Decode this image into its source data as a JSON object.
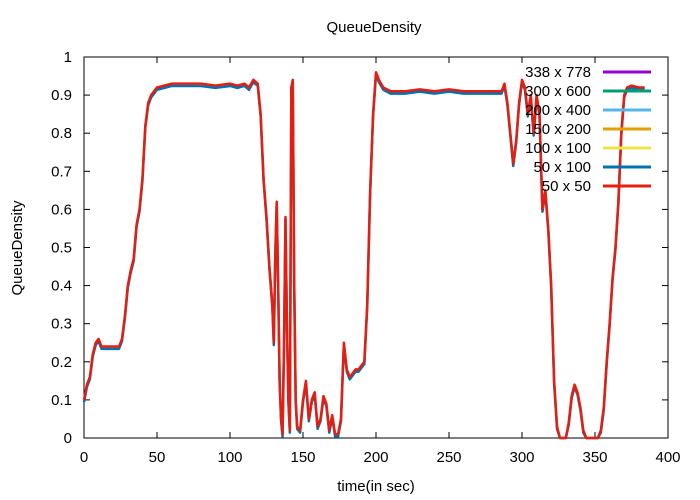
{
  "chart_data": {
    "type": "line",
    "title": "QueueDensity",
    "xlabel": "time(in sec)",
    "ylabel": "QueueDensity",
    "xlim": [
      0,
      400
    ],
    "ylim": [
      0,
      1
    ],
    "xticks": [
      "0",
      "50",
      "100",
      "150",
      "200",
      "250",
      "300",
      "350",
      "400"
    ],
    "yticks": [
      "0",
      "0.1",
      "0.2",
      "0.3",
      "0.4",
      "0.5",
      "0.6",
      "0.7",
      "0.8",
      "0.9",
      "1"
    ],
    "grid": false,
    "legend_position": "top-right",
    "series": [
      {
        "name": "338 x 778",
        "color": "#9400d3",
        "visible": false
      },
      {
        "name": "300 x 600",
        "color": "#009e73",
        "visible": false
      },
      {
        "name": "200 x 400",
        "color": "#56b4e9",
        "visible": false
      },
      {
        "name": "150 x 200",
        "color": "#e69f00",
        "visible": false
      },
      {
        "name": "100 x 100",
        "color": "#f0e442",
        "visible": false
      },
      {
        "name": "50 x 100",
        "color": "#0072b2",
        "visible": true
      },
      {
        "name": "50 x 50",
        "color": "#e51e10",
        "visible": true,
        "points": [
          [
            0,
            0.1
          ],
          [
            2,
            0.14
          ],
          [
            4,
            0.16
          ],
          [
            6,
            0.22
          ],
          [
            8,
            0.25
          ],
          [
            10,
            0.26
          ],
          [
            12,
            0.24
          ],
          [
            16,
            0.24
          ],
          [
            20,
            0.24
          ],
          [
            24,
            0.24
          ],
          [
            26,
            0.26
          ],
          [
            28,
            0.32
          ],
          [
            30,
            0.4
          ],
          [
            32,
            0.44
          ],
          [
            34,
            0.47
          ],
          [
            36,
            0.56
          ],
          [
            38,
            0.6
          ],
          [
            40,
            0.68
          ],
          [
            42,
            0.82
          ],
          [
            44,
            0.88
          ],
          [
            46,
            0.9
          ],
          [
            48,
            0.91
          ],
          [
            50,
            0.92
          ],
          [
            55,
            0.925
          ],
          [
            60,
            0.93
          ],
          [
            70,
            0.93
          ],
          [
            80,
            0.93
          ],
          [
            90,
            0.925
          ],
          [
            100,
            0.93
          ],
          [
            105,
            0.925
          ],
          [
            110,
            0.93
          ],
          [
            113,
            0.92
          ],
          [
            116,
            0.94
          ],
          [
            119,
            0.93
          ],
          [
            121,
            0.85
          ],
          [
            123,
            0.68
          ],
          [
            125,
            0.58
          ],
          [
            127,
            0.45
          ],
          [
            129,
            0.35
          ],
          [
            130,
            0.25
          ],
          [
            131,
            0.48
          ],
          [
            132,
            0.62
          ],
          [
            133,
            0.4
          ],
          [
            134,
            0.15
          ],
          [
            135,
            0.05
          ],
          [
            136,
            0.01
          ],
          [
            137,
            0.25
          ],
          [
            138,
            0.58
          ],
          [
            139,
            0.3
          ],
          [
            140,
            0.1
          ],
          [
            141,
            0.02
          ],
          [
            142,
            0.92
          ],
          [
            143,
            0.94
          ],
          [
            144,
            0.4
          ],
          [
            145,
            0.1
          ],
          [
            146,
            0.03
          ],
          [
            148,
            0.02
          ],
          [
            150,
            0.1
          ],
          [
            152,
            0.15
          ],
          [
            154,
            0.05
          ],
          [
            156,
            0.1
          ],
          [
            158,
            0.12
          ],
          [
            160,
            0.03
          ],
          [
            162,
            0.05
          ],
          [
            164,
            0.11
          ],
          [
            166,
            0.09
          ],
          [
            168,
            0.02
          ],
          [
            170,
            0.06
          ],
          [
            172,
            0.01
          ],
          [
            174,
            0.01
          ],
          [
            176,
            0.05
          ],
          [
            178,
            0.25
          ],
          [
            180,
            0.18
          ],
          [
            182,
            0.16
          ],
          [
            184,
            0.17
          ],
          [
            186,
            0.18
          ],
          [
            188,
            0.18
          ],
          [
            190,
            0.19
          ],
          [
            192,
            0.2
          ],
          [
            194,
            0.35
          ],
          [
            196,
            0.65
          ],
          [
            198,
            0.85
          ],
          [
            200,
            0.96
          ],
          [
            202,
            0.94
          ],
          [
            205,
            0.92
          ],
          [
            210,
            0.91
          ],
          [
            220,
            0.91
          ],
          [
            230,
            0.915
          ],
          [
            240,
            0.91
          ],
          [
            250,
            0.915
          ],
          [
            260,
            0.91
          ],
          [
            270,
            0.91
          ],
          [
            280,
            0.91
          ],
          [
            286,
            0.91
          ],
          [
            288,
            0.93
          ],
          [
            290,
            0.88
          ],
          [
            292,
            0.8
          ],
          [
            294,
            0.72
          ],
          [
            296,
            0.78
          ],
          [
            298,
            0.88
          ],
          [
            300,
            0.94
          ],
          [
            302,
            0.92
          ],
          [
            304,
            0.85
          ],
          [
            306,
            0.9
          ],
          [
            308,
            0.8
          ],
          [
            310,
            0.9
          ],
          [
            312,
            0.85
          ],
          [
            314,
            0.6
          ],
          [
            316,
            0.65
          ],
          [
            318,
            0.55
          ],
          [
            320,
            0.4
          ],
          [
            322,
            0.15
          ],
          [
            324,
            0.03
          ],
          [
            326,
            0.0
          ],
          [
            330,
            0.0
          ],
          [
            332,
            0.04
          ],
          [
            334,
            0.11
          ],
          [
            336,
            0.14
          ],
          [
            338,
            0.12
          ],
          [
            340,
            0.08
          ],
          [
            342,
            0.02
          ],
          [
            344,
            0.0
          ],
          [
            348,
            0.0
          ],
          [
            352,
            0.0
          ],
          [
            354,
            0.02
          ],
          [
            356,
            0.08
          ],
          [
            358,
            0.2
          ],
          [
            360,
            0.3
          ],
          [
            362,
            0.42
          ],
          [
            364,
            0.5
          ],
          [
            366,
            0.62
          ],
          [
            368,
            0.8
          ],
          [
            370,
            0.9
          ],
          [
            372,
            0.92
          ],
          [
            375,
            0.925
          ],
          [
            380,
            0.92
          ],
          [
            384,
            0.92
          ]
        ]
      }
    ]
  }
}
